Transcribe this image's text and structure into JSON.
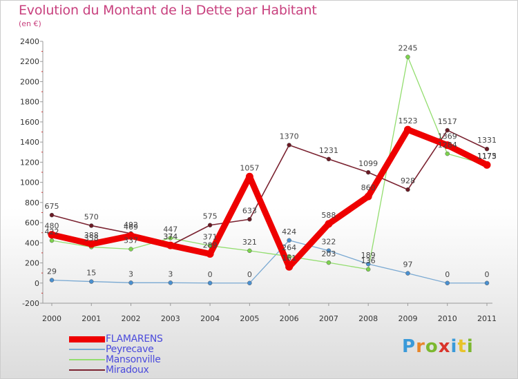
{
  "header": {
    "title": "Evolution du Montant de la Dette par Habitant",
    "subtitle": "(en €)"
  },
  "logo": {
    "text": "Proxiti",
    "colors": [
      "#3a9ad9",
      "#e8862a",
      "#7cb82f",
      "#d9342b",
      "#3a9ad9",
      "#e8c32a",
      "#7cb82f"
    ]
  },
  "chart_data": {
    "type": "line",
    "title": "Evolution du Montant de la Dette par Habitant",
    "subtitle": "(en €)",
    "xlabel": "",
    "ylabel": "",
    "x": [
      "2000",
      "2001",
      "2002",
      "2003",
      "2004",
      "2005",
      "2006",
      "2007",
      "2008",
      "2009",
      "2010",
      "2011"
    ],
    "ylim": [
      -200,
      2400
    ],
    "yticks": [
      -200,
      0,
      200,
      400,
      600,
      800,
      1000,
      1200,
      1400,
      1600,
      1800,
      2000,
      2200,
      2400
    ],
    "grid": false,
    "legend": "bottom-left",
    "series": [
      {
        "name": "FLAMARENS",
        "color": "#ee0000",
        "marker": "#ee0000",
        "values": [
          480,
          388,
          469,
          374,
          289,
          1057,
          161,
          588,
          860,
          1523,
          1369,
          1173
        ]
      },
      {
        "name": "Peyrecave",
        "color": "#78a8d2",
        "marker": "#4a90d0",
        "values": [
          29,
          15,
          3,
          3,
          0,
          0,
          424,
          322,
          189,
          97,
          0,
          0
        ]
      },
      {
        "name": "Mansonville",
        "color": "#92dd6e",
        "marker": "#7dd34e",
        "values": [
          422,
          358,
          337,
          447,
          371,
          321,
          264,
          203,
          136,
          2245,
          1284,
          1175
        ]
      },
      {
        "name": "Miradoux",
        "color": "#7a2230",
        "marker": "#6a1a24",
        "values": [
          675,
          570,
          492,
          374,
          575,
          633,
          1370,
          1231,
          1099,
          928,
          1517,
          1331
        ]
      }
    ]
  }
}
